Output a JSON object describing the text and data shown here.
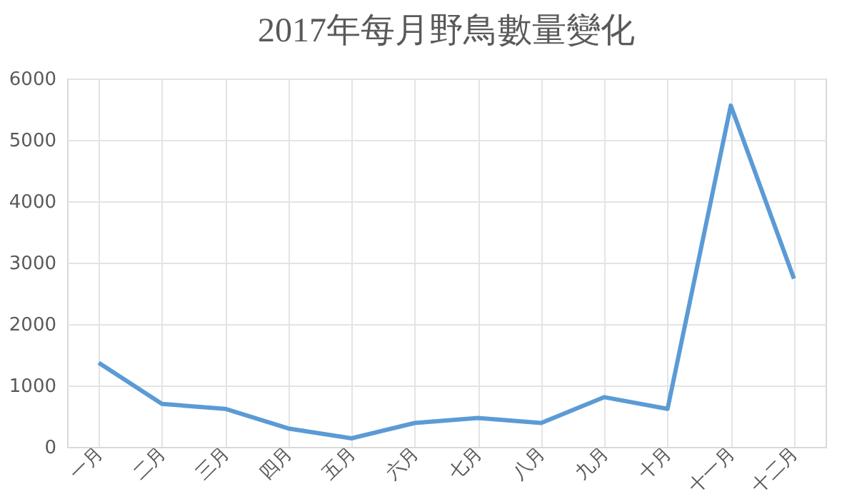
{
  "chart_data": {
    "type": "line",
    "title": "2017年每月野鳥數量變化",
    "categories": [
      "一月",
      "二月",
      "三月",
      "四月",
      "五月",
      "六月",
      "七月",
      "八月",
      "九月",
      "十月",
      "十一月",
      "十二月"
    ],
    "series": [
      {
        "color": "#5b9bd5",
        "values": [
          1370,
          700,
          620,
          300,
          140,
          390,
          470,
          390,
          810,
          620,
          5560,
          2740
        ]
      }
    ],
    "ylim": [
      0,
      6000
    ],
    "yticks": [
      0,
      1000,
      2000,
      3000,
      4000,
      5000,
      6000
    ],
    "grid": true,
    "marker": "none",
    "line_style": "solid",
    "legend": false
  }
}
